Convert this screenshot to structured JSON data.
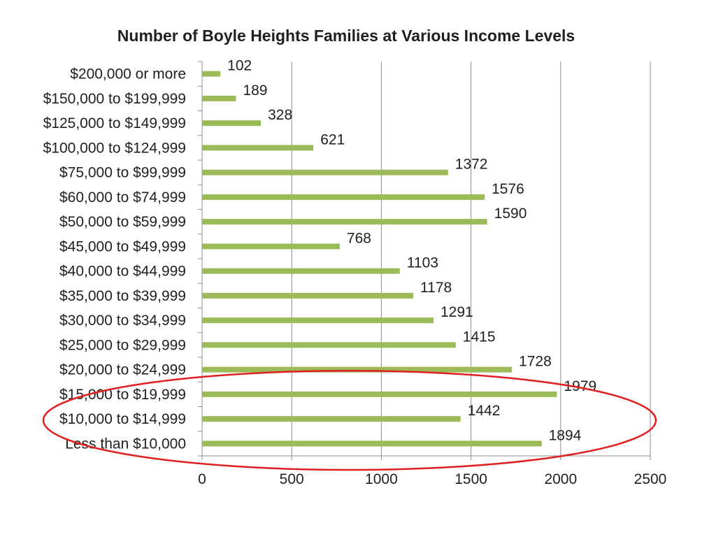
{
  "chart_data": {
    "type": "bar",
    "orientation": "horizontal",
    "title": "Number of Boyle Heights Families at Various Income Levels",
    "categories": [
      "$200,000 or more",
      "$150,000 to $199,999",
      "$125,000 to $149,999",
      "$100,000 to $124,999",
      "$75,000 to $99,999",
      "$60,000 to $74,999",
      "$50,000 to $59,999",
      "$45,000 to $49,999",
      "$40,000 to $44,999",
      "$35,000 to $39,999",
      "$30,000 to $34,999",
      "$25,000 to $29,999",
      "$20,000 to $24,999",
      "$15,000 to $19,999",
      "$10,000 to $14,999",
      "Less than $10,000"
    ],
    "values": [
      102,
      189,
      328,
      621,
      1372,
      1576,
      1590,
      768,
      1103,
      1178,
      1291,
      1415,
      1728,
      1979,
      1442,
      1894
    ],
    "xlim": [
      0,
      2500
    ],
    "xticks": [
      0,
      500,
      1000,
      1500,
      2000,
      2500
    ],
    "xlabel": "",
    "ylabel": "",
    "grid": true,
    "legend": "none",
    "bar_color": "#9bbb59",
    "annotation": {
      "shape": "ellipse",
      "color": "#e02020",
      "encloses": [
        "$15,000 to $19,999",
        "$10,000 to $14,999",
        "Less than $10,000"
      ]
    }
  }
}
